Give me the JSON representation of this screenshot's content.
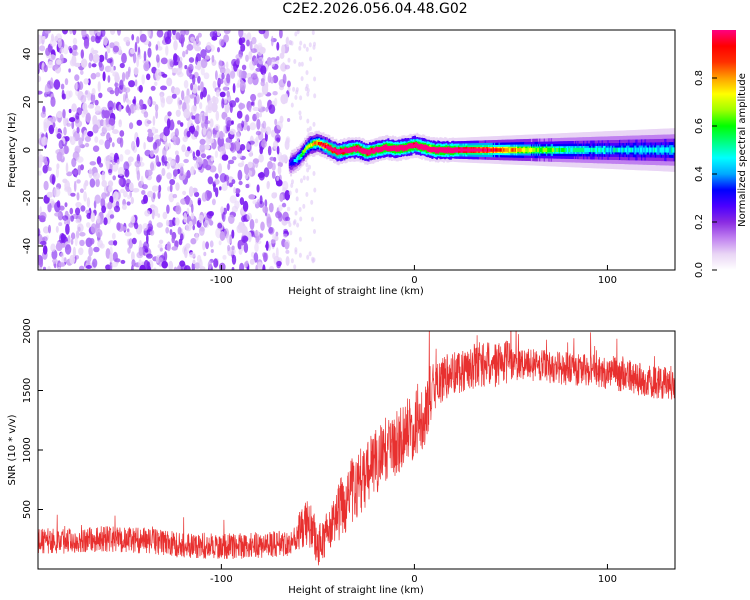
{
  "title": "C2E2.2026.056.04.48.G02",
  "colors": {
    "line": "#e8302f",
    "colormap": [
      "#ffffff",
      "#e9d5f5",
      "#c080f0",
      "#8a2be2",
      "#4b00ff",
      "#0000ff",
      "#00a8ff",
      "#00ffff",
      "#00ff7f",
      "#00ff00",
      "#a0ff00",
      "#ffff00",
      "#ffa000",
      "#ff3000",
      "#ff0000",
      "#ff0080"
    ]
  },
  "chart_data": [
    {
      "type": "heatmap",
      "xlabel": "Height of straight line (km)",
      "ylabel": "Frequency (Hz)",
      "xlim": [
        -195,
        135
      ],
      "ylim": [
        -50,
        50
      ],
      "xticks": [
        -100,
        0,
        100
      ],
      "xtick_labels": [
        "-100",
        "0",
        "100"
      ],
      "yticks": [
        -40,
        -20,
        0,
        20,
        40
      ],
      "ytick_labels": [
        "-40",
        "-20",
        "0",
        "20",
        "40"
      ],
      "noise_region_x": [
        -195,
        -65
      ],
      "signal_track": {
        "x": [
          -65,
          -60,
          -55,
          -50,
          -45,
          -40,
          -35,
          -30,
          -25,
          -20,
          -15,
          -10,
          -5,
          0,
          5,
          10,
          20,
          40,
          60,
          80,
          100,
          120,
          135
        ],
        "freq": [
          -6,
          -3,
          2,
          3,
          1,
          -1,
          0,
          0.5,
          -1,
          0,
          1,
          0.5,
          1,
          2,
          1,
          0,
          0,
          0,
          0,
          0,
          0,
          0,
          0
        ],
        "amplitude": [
          0.35,
          0.5,
          0.6,
          0.7,
          0.8,
          0.85,
          0.9,
          0.9,
          0.9,
          0.9,
          0.95,
          0.95,
          0.9,
          0.9,
          0.95,
          0.95,
          0.9,
          0.75,
          0.6,
          0.5,
          0.45,
          0.45,
          0.45
        ]
      },
      "colorbar": {
        "label": "Normalized spectral amplitude",
        "range": [
          0,
          1
        ],
        "ticks": [
          0.0,
          0.2,
          0.4,
          0.6,
          0.8
        ],
        "tick_labels": [
          "0.0",
          "0.2",
          "0.4",
          "0.6",
          "0.8"
        ]
      }
    },
    {
      "type": "line",
      "xlabel": "Height of straight line (km)",
      "ylabel": "SNR (10 * v/v)",
      "xlim": [
        -195,
        135
      ],
      "ylim": [
        0,
        2000
      ],
      "xticks": [
        -100,
        0,
        100
      ],
      "xtick_labels": [
        "-100",
        "0",
        "100"
      ],
      "yticks": [
        500,
        1000,
        1500,
        2000
      ],
      "ytick_labels": [
        "500",
        "1000",
        "1500",
        "2000"
      ],
      "series": [
        {
          "x": [
            -195,
            -180,
            -160,
            -140,
            -120,
            -100,
            -80,
            -65,
            -60,
            -55,
            -50,
            -45,
            -40,
            -35,
            -30,
            -25,
            -20,
            -15,
            -10,
            -5,
            0,
            5,
            10,
            15,
            20,
            30,
            40,
            50,
            60,
            70,
            80,
            90,
            100,
            110,
            120,
            135
          ],
          "y": [
            230,
            240,
            250,
            240,
            200,
            190,
            200,
            220,
            280,
            400,
            200,
            300,
            450,
            600,
            700,
            800,
            900,
            1000,
            1050,
            1150,
            1200,
            1300,
            1500,
            1600,
            1650,
            1700,
            1720,
            1730,
            1720,
            1700,
            1680,
            1670,
            1650,
            1620,
            1580,
            1550
          ]
        }
      ]
    }
  ]
}
